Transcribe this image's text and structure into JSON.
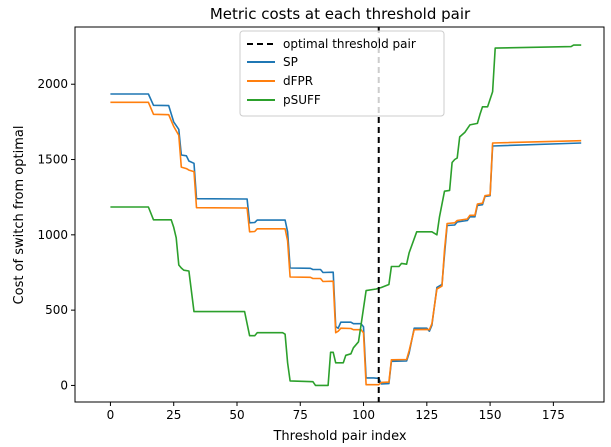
{
  "chart_data": {
    "type": "line",
    "title": "Metric costs at each threshold pair",
    "xlabel": "Threshold pair index",
    "ylabel": "Cost of switch from optimal",
    "xlim": [
      -14,
      195
    ],
    "ylim": [
      -110,
      2380
    ],
    "xticks": [
      0,
      25,
      50,
      75,
      100,
      125,
      150,
      175
    ],
    "yticks": [
      0,
      500,
      1000,
      1500,
      2000
    ],
    "grid": false,
    "legend_position": "top-center",
    "vline": {
      "name": "optimal threshold pair",
      "x": 106,
      "color": "#000000",
      "style": "dashed"
    },
    "series": [
      {
        "name": "SP",
        "color": "#1f77b4",
        "points": [
          [
            0,
            1935
          ],
          [
            15,
            1935
          ],
          [
            17,
            1860
          ],
          [
            23,
            1858
          ],
          [
            25,
            1750
          ],
          [
            27,
            1700
          ],
          [
            28,
            1530
          ],
          [
            30,
            1525
          ],
          [
            31,
            1490
          ],
          [
            33,
            1475
          ],
          [
            34,
            1240
          ],
          [
            53,
            1238
          ],
          [
            54,
            1238
          ],
          [
            55,
            1080
          ],
          [
            57,
            1082
          ],
          [
            58,
            1098
          ],
          [
            69,
            1098
          ],
          [
            70,
            1020
          ],
          [
            71,
            780
          ],
          [
            79,
            778
          ],
          [
            80,
            770
          ],
          [
            83,
            770
          ],
          [
            84,
            750
          ],
          [
            88,
            752
          ],
          [
            89,
            390
          ],
          [
            90,
            380
          ],
          [
            91,
            420
          ],
          [
            95,
            420
          ],
          [
            96,
            410
          ],
          [
            99,
            410
          ],
          [
            100,
            390
          ],
          [
            101,
            50
          ],
          [
            104,
            50
          ],
          [
            105,
            48
          ],
          [
            106,
            48
          ],
          [
            107,
            10
          ],
          [
            110,
            12
          ],
          [
            111,
            160
          ],
          [
            117,
            162
          ],
          [
            118,
            215
          ],
          [
            120,
            380
          ],
          [
            125,
            380
          ],
          [
            126,
            360
          ],
          [
            127,
            400
          ],
          [
            129,
            650
          ],
          [
            131,
            670
          ],
          [
            132,
            870
          ],
          [
            133,
            1062
          ],
          [
            136,
            1065
          ],
          [
            137,
            1085
          ],
          [
            141,
            1095
          ],
          [
            142,
            1120
          ],
          [
            144,
            1120
          ],
          [
            145,
            1195
          ],
          [
            147,
            1200
          ],
          [
            148,
            1255
          ],
          [
            150,
            1260
          ],
          [
            151,
            1590
          ],
          [
            186,
            1610
          ]
        ]
      },
      {
        "name": "dFPR",
        "color": "#ff7f0e",
        "points": [
          [
            0,
            1880
          ],
          [
            15,
            1880
          ],
          [
            17,
            1800
          ],
          [
            23,
            1798
          ],
          [
            25,
            1720
          ],
          [
            27,
            1660
          ],
          [
            28,
            1450
          ],
          [
            30,
            1440
          ],
          [
            31,
            1430
          ],
          [
            33,
            1420
          ],
          [
            34,
            1180
          ],
          [
            53,
            1178
          ],
          [
            54,
            1178
          ],
          [
            55,
            1020
          ],
          [
            57,
            1022
          ],
          [
            58,
            1040
          ],
          [
            69,
            1040
          ],
          [
            70,
            960
          ],
          [
            71,
            720
          ],
          [
            79,
            718
          ],
          [
            80,
            710
          ],
          [
            83,
            710
          ],
          [
            84,
            690
          ],
          [
            88,
            692
          ],
          [
            89,
            350
          ],
          [
            90,
            360
          ],
          [
            91,
            380
          ],
          [
            95,
            378
          ],
          [
            96,
            370
          ],
          [
            99,
            370
          ],
          [
            100,
            350
          ],
          [
            101,
            5
          ],
          [
            104,
            5
          ],
          [
            105,
            5
          ],
          [
            106,
            5
          ],
          [
            107,
            20
          ],
          [
            110,
            22
          ],
          [
            111,
            170
          ],
          [
            117,
            172
          ],
          [
            118,
            230
          ],
          [
            120,
            370
          ],
          [
            125,
            372
          ],
          [
            126,
            370
          ],
          [
            127,
            410
          ],
          [
            129,
            640
          ],
          [
            131,
            660
          ],
          [
            132,
            900
          ],
          [
            133,
            1075
          ],
          [
            136,
            1080
          ],
          [
            137,
            1095
          ],
          [
            141,
            1105
          ],
          [
            142,
            1130
          ],
          [
            144,
            1130
          ],
          [
            145,
            1205
          ],
          [
            147,
            1210
          ],
          [
            148,
            1260
          ],
          [
            150,
            1265
          ],
          [
            151,
            1610
          ],
          [
            186,
            1625
          ]
        ]
      },
      {
        "name": "pSUFF",
        "color": "#2ca02c",
        "points": [
          [
            0,
            1185
          ],
          [
            15,
            1185
          ],
          [
            17,
            1100
          ],
          [
            24,
            1100
          ],
          [
            25,
            1050
          ],
          [
            26,
            980
          ],
          [
            27,
            800
          ],
          [
            28,
            780
          ],
          [
            29,
            765
          ],
          [
            31,
            760
          ],
          [
            33,
            490
          ],
          [
            53,
            490
          ],
          [
            55,
            330
          ],
          [
            57,
            330
          ],
          [
            58,
            350
          ],
          [
            68,
            350
          ],
          [
            69,
            340
          ],
          [
            70,
            150
          ],
          [
            71,
            30
          ],
          [
            80,
            25
          ],
          [
            81,
            0
          ],
          [
            86,
            0
          ],
          [
            87,
            220
          ],
          [
            88,
            220
          ],
          [
            89,
            150
          ],
          [
            92,
            150
          ],
          [
            93,
            200
          ],
          [
            95,
            210
          ],
          [
            96,
            250
          ],
          [
            98,
            290
          ],
          [
            99,
            400
          ],
          [
            101,
            630
          ],
          [
            105,
            640
          ],
          [
            107,
            650
          ],
          [
            110,
            670
          ],
          [
            111,
            790
          ],
          [
            114,
            790
          ],
          [
            115,
            810
          ],
          [
            117,
            805
          ],
          [
            118,
            880
          ],
          [
            121,
            1020
          ],
          [
            127,
            1020
          ],
          [
            129,
            1000
          ],
          [
            130,
            1120
          ],
          [
            132,
            1290
          ],
          [
            134,
            1295
          ],
          [
            135,
            1480
          ],
          [
            136,
            1500
          ],
          [
            137,
            1510
          ],
          [
            138,
            1650
          ],
          [
            140,
            1680
          ],
          [
            142,
            1730
          ],
          [
            145,
            1740
          ],
          [
            146,
            1800
          ],
          [
            147,
            1850
          ],
          [
            149,
            1850
          ],
          [
            150,
            1900
          ],
          [
            151,
            1950
          ],
          [
            152,
            2240
          ],
          [
            182,
            2250
          ],
          [
            183,
            2260
          ],
          [
            186,
            2260
          ]
        ]
      }
    ]
  }
}
